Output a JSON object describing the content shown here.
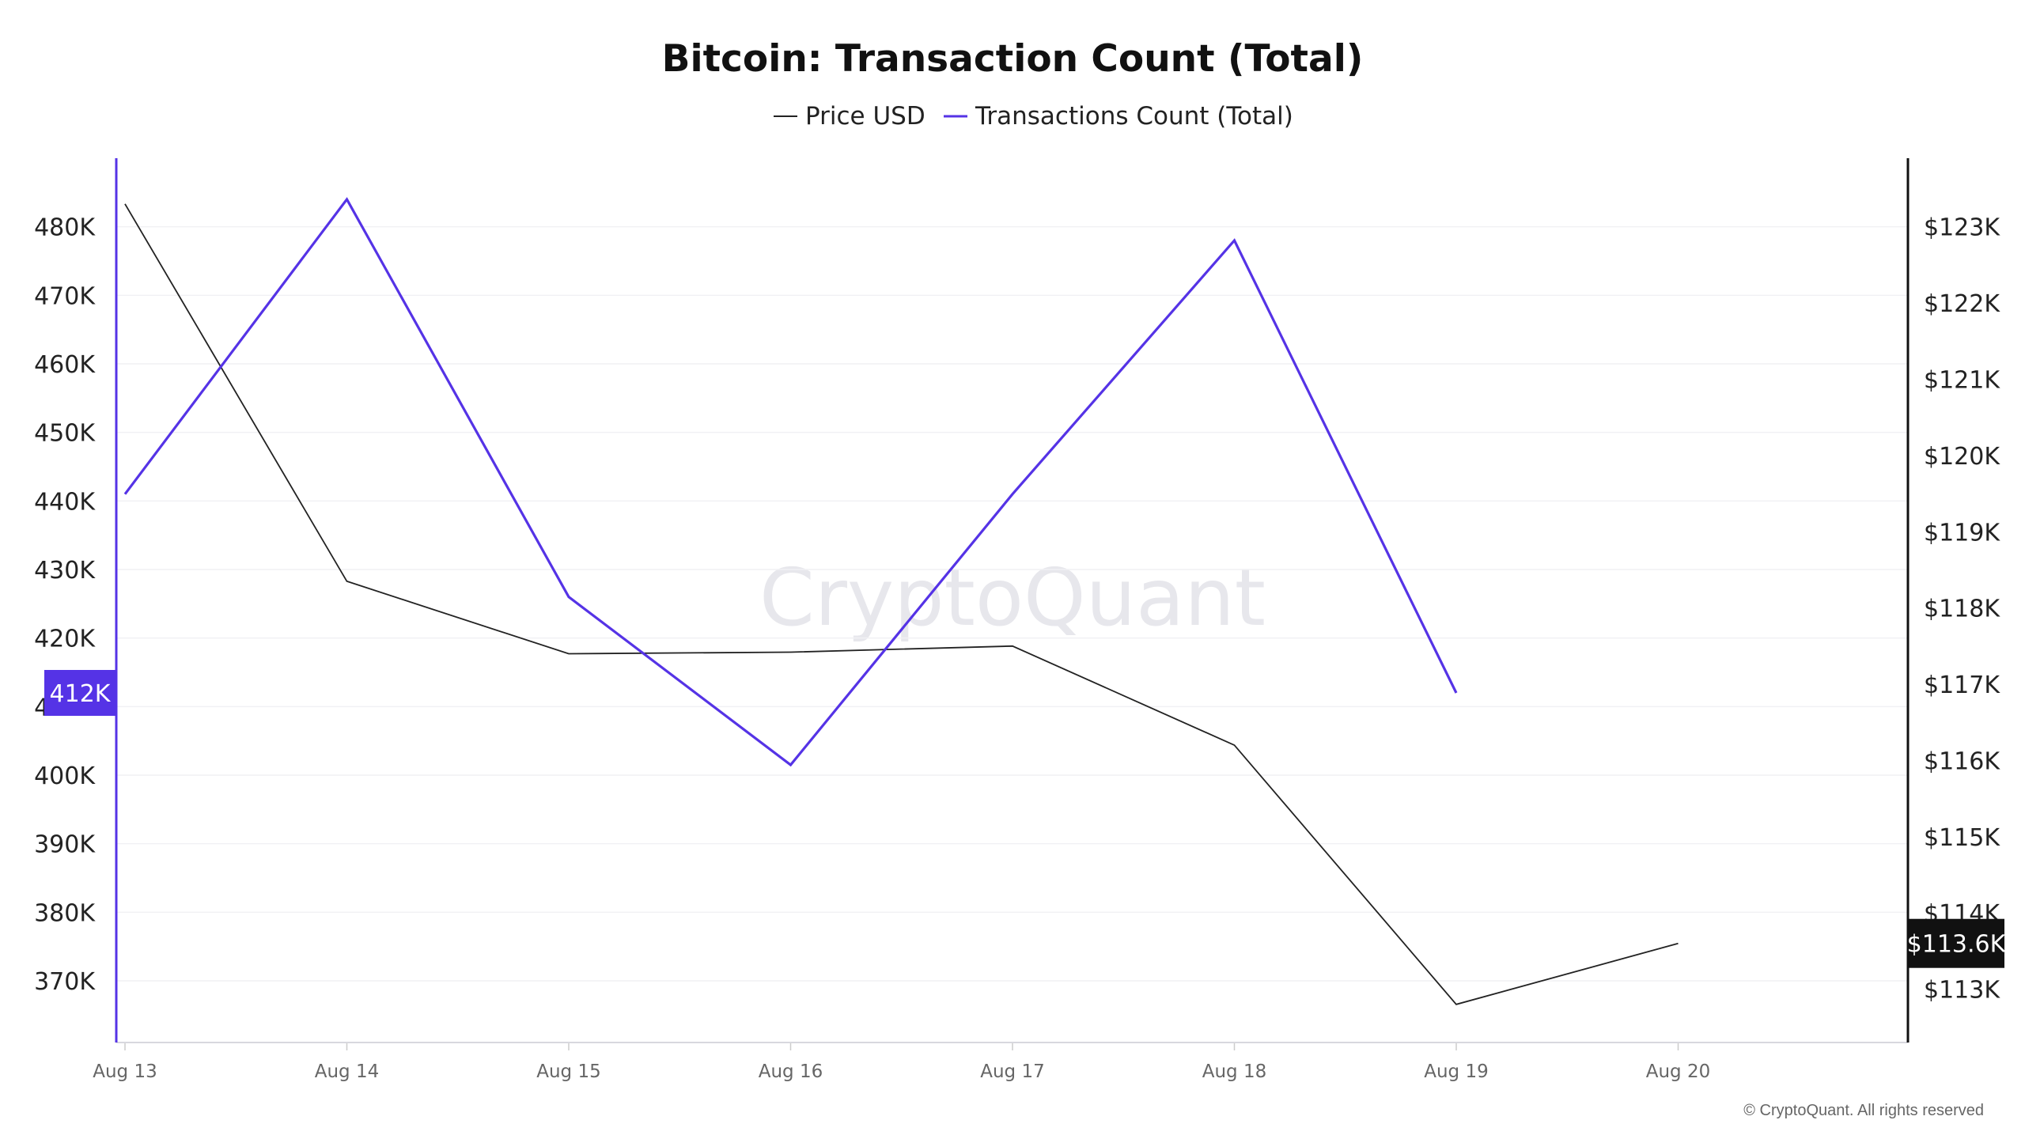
{
  "chart_data": {
    "type": "line",
    "title": "Bitcoin: Transaction Count (Total)",
    "watermark": "CryptoQuant",
    "copyright": "© CryptoQuant. All rights reserved",
    "x": [
      "Aug 13",
      "Aug 14",
      "Aug 15",
      "Aug 16",
      "Aug 17",
      "Aug 18",
      "Aug 19",
      "Aug 20"
    ],
    "series": [
      {
        "name": "Price USD",
        "axis": "right",
        "color": "#222222",
        "values": [
          123300,
          118350,
          117400,
          117420,
          117500,
          116200,
          112800,
          113600
        ]
      },
      {
        "name": "Transactions Count (Total)",
        "axis": "left",
        "color": "#5533e6",
        "values": [
          441000,
          484000,
          426000,
          401500,
          441000,
          478000,
          412000,
          null
        ]
      }
    ],
    "y_left": {
      "ticks": [
        370000,
        380000,
        390000,
        400000,
        410000,
        420000,
        430000,
        440000,
        450000,
        460000,
        470000,
        480000
      ],
      "tick_labels": [
        "370K",
        "380K",
        "390K",
        "400K",
        "410K",
        "420K",
        "430K",
        "440K",
        "450K",
        "460K",
        "470K",
        "480K"
      ],
      "range": [
        361000,
        490000
      ]
    },
    "y_right": {
      "ticks": [
        113000,
        114000,
        115000,
        116000,
        117000,
        118000,
        119000,
        120000,
        121000,
        122000,
        123000
      ],
      "tick_labels": [
        "$113K",
        "$114K",
        "$115K",
        "$116K",
        "$117K",
        "$118K",
        "$119K",
        "$120K",
        "$121K",
        "$122K",
        "$123K"
      ],
      "range": [
        112300,
        123900
      ]
    },
    "badges": {
      "left": "412K",
      "right": "$113.6K"
    },
    "grid": true,
    "legend_position": "top-center"
  }
}
